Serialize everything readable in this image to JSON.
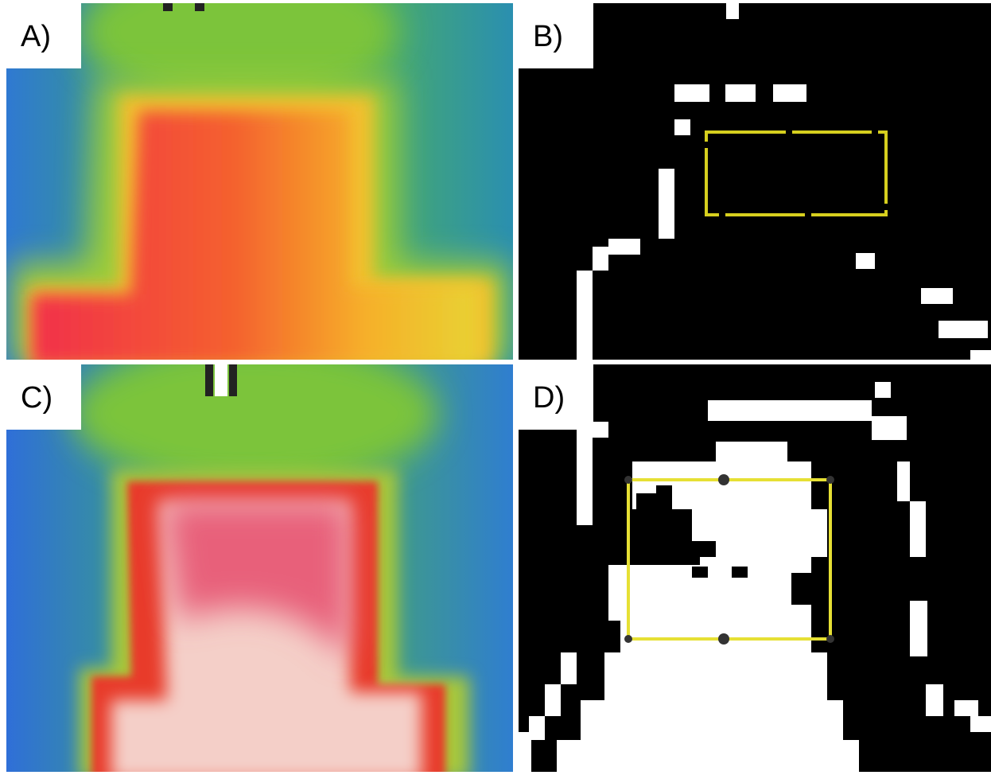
{
  "panels": [
    {
      "label": "A)"
    },
    {
      "label": "B)"
    },
    {
      "label": "C)"
    },
    {
      "label": "D)"
    }
  ]
}
